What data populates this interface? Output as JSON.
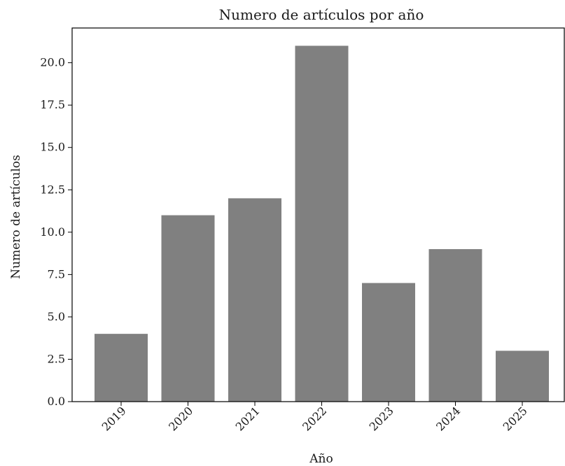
{
  "chart_data": {
    "type": "bar",
    "title": "Numero de artículos por año",
    "xlabel": "Año",
    "ylabel": "Numero de artículos",
    "categories": [
      "2019",
      "2020",
      "2021",
      "2022",
      "2023",
      "2024",
      "2025"
    ],
    "values": [
      4,
      11,
      12,
      21,
      7,
      9,
      3
    ],
    "ylim": [
      0,
      22.05
    ],
    "yticks": [
      "0.0",
      "2.5",
      "5.0",
      "7.5",
      "10.0",
      "12.5",
      "15.0",
      "17.5",
      "20.0"
    ],
    "bar_color": "#808080",
    "grid": false,
    "legend": "none"
  }
}
